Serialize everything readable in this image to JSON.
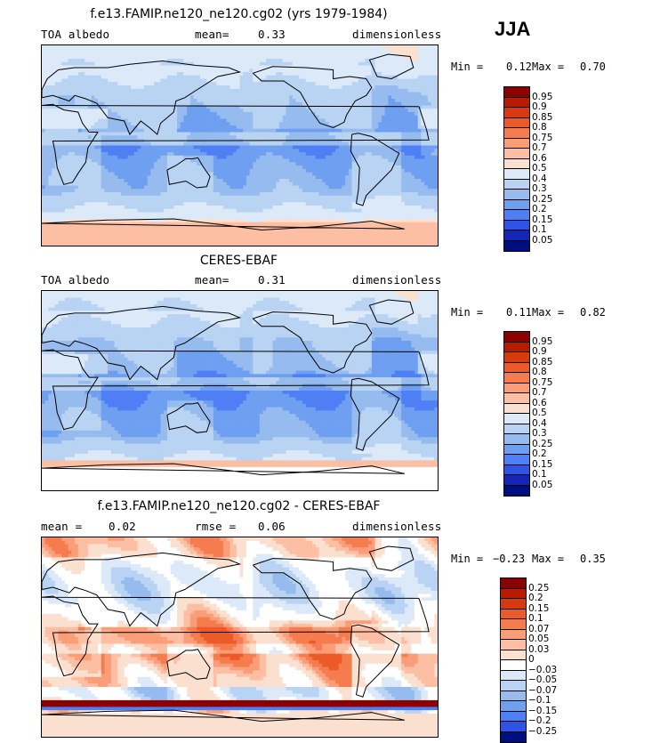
{
  "season": "JJA",
  "panels": [
    {
      "title": "f.e13.FAMIP.ne120_ne120.cg02 (yrs 1979-1984)",
      "left": "TOA albedo",
      "mean_label": "mean=",
      "mean_value": "0.33",
      "units": "dimensionless",
      "min_label": "Min =",
      "min_value": "0.12",
      "max_label": "Max =",
      "max_value": "0.70",
      "colorbar": {
        "labels": [
          "0.95",
          "0.9",
          "0.85",
          "0.8",
          "0.75",
          "0.7",
          "0.6",
          "0.5",
          "0.4",
          "0.3",
          "0.25",
          "0.2",
          "0.15",
          "0.1",
          "0.05"
        ],
        "colors": [
          "#8b0000",
          "#b71c00",
          "#d83a10",
          "#ec5a2a",
          "#f57c4f",
          "#fb9d78",
          "#fdbfa3",
          "#fbe0d0",
          "#dce9f8",
          "#b9d3f3",
          "#96bbee",
          "#6e9ff0",
          "#4f7ff5",
          "#2f53e6",
          "#1426b8",
          "#000f80"
        ]
      },
      "field": "albedo_model"
    },
    {
      "title": "CERES-EBAF",
      "left": "TOA albedo",
      "mean_label": "mean=",
      "mean_value": "0.31",
      "units": "dimensionless",
      "min_label": "Min =",
      "min_value": "0.11",
      "max_label": "Max =",
      "max_value": "0.82",
      "colorbar": {
        "labels": [
          "0.95",
          "0.9",
          "0.85",
          "0.8",
          "0.75",
          "0.7",
          "0.6",
          "0.5",
          "0.4",
          "0.3",
          "0.25",
          "0.2",
          "0.15",
          "0.1",
          "0.05"
        ],
        "colors": [
          "#8b0000",
          "#b71c00",
          "#d83a10",
          "#ec5a2a",
          "#f57c4f",
          "#fb9d78",
          "#fdbfa3",
          "#fbe0d0",
          "#dce9f8",
          "#b9d3f3",
          "#96bbee",
          "#6e9ff0",
          "#4f7ff5",
          "#2f53e6",
          "#1426b8",
          "#000f80"
        ]
      },
      "field": "albedo_obs"
    },
    {
      "title": "f.e13.FAMIP.ne120_ne120.cg02 - CERES-EBAF",
      "left_label": "mean =",
      "left_value": "0.02",
      "mid_label": "rmse =",
      "mid_value": "0.06",
      "units": "dimensionless",
      "min_label": "Min =",
      "min_value": "−0.23",
      "max_label": "Max =",
      "max_value": "0.35",
      "colorbar": {
        "labels": [
          "0.25",
          "0.2",
          "0.15",
          "0.1",
          "0.07",
          "0.05",
          "0.03",
          "0",
          "−0.03",
          "−0.05",
          "−0.07",
          "−0.1",
          "−0.15",
          "−0.2",
          "−0.25"
        ],
        "colors": [
          "#8b0000",
          "#b71c00",
          "#d83a10",
          "#ec5a2a",
          "#f57c4f",
          "#fb9d78",
          "#fdbfa3",
          "#fbe0d0",
          "#ffffff",
          "#dce9f8",
          "#b9d3f3",
          "#96bbee",
          "#6e9ff0",
          "#4f7ff5",
          "#2f53e6",
          "#000f80"
        ]
      },
      "field": "difference"
    }
  ],
  "chart_data": [
    {
      "type": "heatmap",
      "title": "f.e13.FAMIP.ne120_ne120.cg02 (yrs 1979-1984)",
      "variable": "TOA albedo",
      "units": "dimensionless",
      "season": "JJA",
      "mean": 0.33,
      "min": 0.12,
      "max": 0.7,
      "contour_levels": [
        0.05,
        0.1,
        0.15,
        0.2,
        0.25,
        0.3,
        0.4,
        0.5,
        0.6,
        0.7,
        0.75,
        0.8,
        0.85,
        0.9,
        0.95
      ]
    },
    {
      "type": "heatmap",
      "title": "CERES-EBAF",
      "variable": "TOA albedo",
      "units": "dimensionless",
      "season": "JJA",
      "mean": 0.31,
      "min": 0.11,
      "max": 0.82,
      "contour_levels": [
        0.05,
        0.1,
        0.15,
        0.2,
        0.25,
        0.3,
        0.4,
        0.5,
        0.6,
        0.7,
        0.75,
        0.8,
        0.85,
        0.9,
        0.95
      ]
    },
    {
      "type": "heatmap",
      "title": "f.e13.FAMIP.ne120_ne120.cg02 - CERES-EBAF",
      "units": "dimensionless",
      "season": "JJA",
      "mean": 0.02,
      "rmse": 0.06,
      "min": -0.23,
      "max": 0.35,
      "contour_levels": [
        -0.25,
        -0.2,
        -0.15,
        -0.1,
        -0.07,
        -0.05,
        -0.03,
        0,
        0.03,
        0.05,
        0.07,
        0.1,
        0.15,
        0.2,
        0.25
      ]
    }
  ]
}
